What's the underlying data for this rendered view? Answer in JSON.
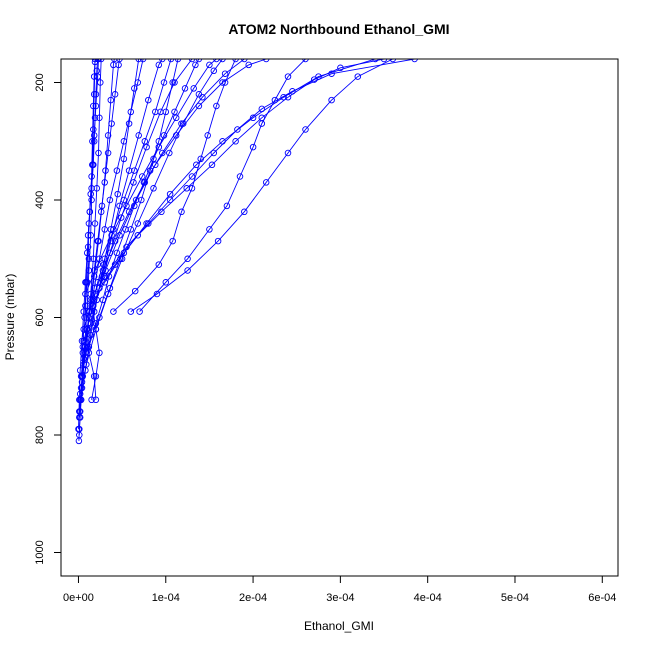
{
  "chart_data": {
    "type": "line",
    "title": "ATOM2 Northbound Ethanol_GMI",
    "xlabel": "Ethanol_GMI",
    "ylabel": "Pressure (mbar)",
    "xlim": [
      -2e-05,
      0.000618
    ],
    "ylim": [
      1040,
      160
    ],
    "y_reversed": true,
    "x_ticks": [
      0,
      0.0001,
      0.0002,
      0.0003,
      0.0004,
      0.0005,
      0.0006
    ],
    "x_tick_labels": [
      "0e+00",
      "1e-04",
      "2e-04",
      "3e-04",
      "4e-04",
      "5e-04",
      "6e-04"
    ],
    "y_ticks": [
      200,
      400,
      600,
      800,
      1000
    ],
    "y_tick_labels": [
      "200",
      "400",
      "600",
      "800",
      "1000"
    ],
    "marker": "open-circle",
    "line_color": "#0000ff",
    "grid": false,
    "series": [
      {
        "points": [
          [
            5e-07,
            810
          ],
          [
            1e-06,
            790
          ],
          [
            2e-06,
            770
          ],
          [
            3e-06,
            740
          ],
          [
            4e-06,
            700
          ],
          [
            5e-06,
            650
          ],
          [
            7e-06,
            600
          ],
          [
            9e-06,
            540
          ],
          [
            1.1e-05,
            480
          ],
          [
            1.3e-05,
            420
          ],
          [
            1.5e-05,
            360
          ],
          [
            1.6e-05,
            300
          ],
          [
            1.7e-05,
            240
          ],
          [
            1.8e-05,
            190
          ],
          [
            1.9e-05,
            160
          ]
        ]
      },
      {
        "points": [
          [
            1e-06,
            800
          ],
          [
            2e-06,
            760
          ],
          [
            4e-06,
            720
          ],
          [
            6e-06,
            680
          ],
          [
            8e-06,
            630
          ],
          [
            1e-05,
            580
          ],
          [
            1.2e-05,
            520
          ],
          [
            1.4e-05,
            460
          ],
          [
            1.5e-05,
            400
          ],
          [
            1.6e-05,
            340
          ],
          [
            1.7e-05,
            280
          ],
          [
            1.8e-05,
            220
          ],
          [
            1.9e-05,
            165
          ]
        ]
      },
      {
        "points": [
          [
            2e-06,
            740
          ],
          [
            5e-06,
            700
          ],
          [
            8e-06,
            660
          ],
          [
            1.1e-05,
            610
          ],
          [
            1.4e-05,
            560
          ],
          [
            1.7e-05,
            500
          ],
          [
            1.9e-05,
            440
          ],
          [
            2.1e-05,
            380
          ],
          [
            2.3e-05,
            320
          ],
          [
            2.4e-05,
            260
          ],
          [
            2.5e-05,
            200
          ],
          [
            2.6e-05,
            160
          ]
        ]
      },
      {
        "points": [
          [
            1e-06,
            760
          ],
          [
            4e-06,
            710
          ],
          [
            8e-06,
            650
          ],
          [
            1.3e-05,
            590
          ],
          [
            1.8e-05,
            530
          ],
          [
            2.3e-05,
            470
          ],
          [
            2.7e-05,
            410
          ],
          [
            3.1e-05,
            350
          ],
          [
            3.4e-05,
            290
          ],
          [
            3.7e-05,
            230
          ],
          [
            4e-05,
            170
          ],
          [
            4.1e-05,
            160
          ]
        ]
      },
      {
        "points": [
          [
            3e-06,
            740
          ],
          [
            8e-06,
            690
          ],
          [
            1.4e-05,
            630
          ],
          [
            2.1e-05,
            570
          ],
          [
            2.9e-05,
            510
          ],
          [
            3.7e-05,
            450
          ],
          [
            4.5e-05,
            390
          ],
          [
            5.2e-05,
            330
          ],
          [
            5.8e-05,
            270
          ],
          [
            6.4e-05,
            210
          ],
          [
            6.9e-05,
            160
          ]
        ]
      },
      {
        "points": [
          [
            4e-06,
            700
          ],
          [
            1e-05,
            650
          ],
          [
            1.8e-05,
            590
          ],
          [
            2.7e-05,
            530
          ],
          [
            3.7e-05,
            470
          ],
          [
            4.7e-05,
            410
          ],
          [
            5.8e-05,
            350
          ],
          [
            6.9e-05,
            290
          ],
          [
            8e-05,
            230
          ],
          [
            9.2e-05,
            170
          ],
          [
            9.6e-05,
            160
          ]
        ]
      },
      {
        "points": [
          [
            5e-06,
            660
          ],
          [
            1.4e-05,
            610
          ],
          [
            2.4e-05,
            550
          ],
          [
            3.6e-05,
            490
          ],
          [
            4.9e-05,
            430
          ],
          [
            6.3e-05,
            370
          ],
          [
            7.8e-05,
            310
          ],
          [
            9.4e-05,
            250
          ],
          [
            0.00011,
            200
          ],
          [
            0.00013,
            160
          ]
        ]
      },
      {
        "points": [
          [
            6e-06,
            640
          ],
          [
            1.7e-05,
            580
          ],
          [
            3.1e-05,
            520
          ],
          [
            4.7e-05,
            460
          ],
          [
            6.6e-05,
            400
          ],
          [
            8.8e-05,
            340
          ],
          [
            0.000112,
            290
          ],
          [
            0.000138,
            240
          ],
          [
            0.000165,
            200
          ],
          [
            0.000195,
            170
          ],
          [
            0.000215,
            160
          ]
        ]
      },
      {
        "points": [
          [
            1.2e-05,
            590
          ],
          [
            3e-05,
            540
          ],
          [
            5.2e-05,
            490
          ],
          [
            7.8e-05,
            440
          ],
          [
            0.000105,
            390
          ],
          [
            0.000135,
            340
          ],
          [
            0.000165,
            300
          ],
          [
            0.0002,
            260
          ],
          [
            0.000235,
            225
          ],
          [
            0.000275,
            190
          ],
          [
            0.00034,
            160
          ]
        ]
      },
      {
        "points": [
          [
            2e-05,
            560
          ],
          [
            4.2e-05,
            510
          ],
          [
            6.8e-05,
            460
          ],
          [
            9.5e-05,
            420
          ],
          [
            0.000124,
            380
          ],
          [
            0.000153,
            340
          ],
          [
            0.00018,
            300
          ],
          [
            0.00021,
            260
          ],
          [
            0.00024,
            225
          ],
          [
            0.00027,
            195
          ],
          [
            0.0003,
            175
          ],
          [
            0.00035,
            160
          ]
        ]
      },
      {
        "points": [
          [
            3e-05,
            530
          ],
          [
            5.5e-05,
            480
          ],
          [
            8e-05,
            440
          ],
          [
            0.000105,
            400
          ],
          [
            0.00013,
            360
          ],
          [
            0.000155,
            320
          ],
          [
            0.000182,
            280
          ],
          [
            0.00021,
            245
          ],
          [
            0.000245,
            215
          ],
          [
            0.00029,
            185
          ],
          [
            0.000385,
            160
          ]
        ]
      },
      {
        "points": [
          [
            8e-06,
            560
          ],
          [
            2.2e-05,
            510
          ],
          [
            3.8e-05,
            460
          ],
          [
            5.5e-05,
            410
          ],
          [
            7.3e-05,
            360
          ],
          [
            9.2e-05,
            310
          ],
          [
            0.000112,
            260
          ],
          [
            0.000132,
            210
          ],
          [
            0.00015,
            170
          ],
          [
            0.000158,
            160
          ]
        ]
      },
      {
        "points": [
          [
            2e-06,
            730
          ],
          [
            9e-06,
            680
          ],
          [
            2e-05,
            620
          ],
          [
            3.4e-05,
            560
          ],
          [
            5e-05,
            500
          ],
          [
            6.8e-05,
            440
          ],
          [
            8.6e-05,
            380
          ],
          [
            0.000104,
            320
          ],
          [
            0.00012,
            270
          ],
          [
            0.000138,
            220
          ],
          [
            0.000155,
            180
          ],
          [
            0.000165,
            160
          ]
        ]
      },
      {
        "points": [
          [
            1.5e-05,
            740
          ],
          [
            2e-05,
            700
          ],
          [
            2.4e-05,
            660
          ],
          [
            2e-05,
            620
          ],
          [
            1.6e-05,
            580
          ],
          [
            2.2e-05,
            540
          ],
          [
            3e-05,
            500
          ],
          [
            4e-05,
            450
          ],
          [
            5.2e-05,
            400
          ],
          [
            6.4e-05,
            350
          ],
          [
            7.6e-05,
            300
          ],
          [
            8.8e-05,
            250
          ],
          [
            9.8e-05,
            200
          ],
          [
            0.000106,
            160
          ]
        ]
      },
      {
        "points": [
          [
            6e-05,
            590
          ],
          [
            9e-05,
            560
          ],
          [
            0.000125,
            520
          ],
          [
            0.00016,
            470
          ],
          [
            0.00019,
            420
          ],
          [
            0.000215,
            370
          ],
          [
            0.00024,
            320
          ],
          [
            0.00026,
            280
          ],
          [
            0.00029,
            230
          ],
          [
            0.00032,
            190
          ],
          [
            0.00036,
            160
          ]
        ]
      },
      {
        "points": [
          [
            7e-05,
            590
          ],
          [
            0.0001,
            540
          ],
          [
            0.000125,
            500
          ],
          [
            0.00015,
            450
          ],
          [
            0.00017,
            410
          ],
          [
            0.000185,
            360
          ],
          [
            0.0002,
            310
          ],
          [
            0.00021,
            270
          ],
          [
            0.000225,
            230
          ],
          [
            0.00024,
            190
          ],
          [
            0.00026,
            160
          ]
        ]
      },
      {
        "points": [
          [
            4e-05,
            590
          ],
          [
            6.5e-05,
            555
          ],
          [
            9.2e-05,
            510
          ],
          [
            0.000108,
            470
          ],
          [
            0.000118,
            420
          ],
          [
            0.00013,
            380
          ],
          [
            0.00014,
            330
          ],
          [
            0.000148,
            290
          ],
          [
            0.000158,
            240
          ],
          [
            0.000168,
            200
          ],
          [
            0.00018,
            160
          ]
        ]
      },
      {
        "points": [
          [
            1e-05,
            650
          ],
          [
            2.4e-05,
            600
          ],
          [
            3.6e-05,
            550
          ],
          [
            4.8e-05,
            500
          ],
          [
            6e-05,
            450
          ],
          [
            7.2e-05,
            400
          ],
          [
            8.2e-05,
            350
          ],
          [
            9.2e-05,
            300
          ],
          [
            0.0001,
            250
          ],
          [
            0.000108,
            200
          ],
          [
            0.000114,
            160
          ]
        ]
      },
      {
        "points": [
          [
            1e-06,
            770
          ],
          [
            3e-06,
            720
          ],
          [
            6e-06,
            670
          ],
          [
            1e-05,
            620
          ],
          [
            1.4e-05,
            570
          ],
          [
            1.8e-05,
            520
          ],
          [
            2.2e-05,
            470
          ],
          [
            2.6e-05,
            420
          ],
          [
            3e-05,
            370
          ],
          [
            3.4e-05,
            320
          ],
          [
            3.8e-05,
            270
          ],
          [
            4.2e-05,
            220
          ],
          [
            4.6e-05,
            170
          ],
          [
            4.7e-05,
            160
          ]
        ]
      },
      {
        "points": [
          [
            3e-06,
            700
          ],
          [
            7e-06,
            650
          ],
          [
            1.2e-05,
            600
          ],
          [
            1.8e-05,
            550
          ],
          [
            2.4e-05,
            500
          ],
          [
            3e-05,
            450
          ],
          [
            3.6e-05,
            400
          ],
          [
            4.4e-05,
            350
          ],
          [
            5.2e-05,
            300
          ],
          [
            6e-05,
            250
          ],
          [
            6.8e-05,
            200
          ],
          [
            7.4e-05,
            160
          ]
        ]
      },
      {
        "points": [
          [
            6e-06,
            620
          ],
          [
            1.6e-05,
            570
          ],
          [
            2.8e-05,
            520
          ],
          [
            4.2e-05,
            470
          ],
          [
            5.8e-05,
            420
          ],
          [
            7.6e-05,
            370
          ],
          [
            9.6e-05,
            320
          ],
          [
            0.000118,
            270
          ],
          [
            0.000142,
            225
          ],
          [
            0.000168,
            185
          ],
          [
            0.00019,
            160
          ]
        ]
      },
      {
        "points": [
          [
            2e-05,
            740
          ],
          [
            1.8e-05,
            700
          ],
          [
            1.2e-05,
            660
          ],
          [
            9e-06,
            620
          ],
          [
            8e-06,
            580
          ],
          [
            1e-05,
            540
          ],
          [
            1.2e-05,
            500
          ],
          [
            1.1e-05,
            460
          ],
          [
            1.3e-05,
            420
          ],
          [
            1.5e-05,
            380
          ],
          [
            1.7e-05,
            340
          ],
          [
            1.8e-05,
            300
          ],
          [
            1.9e-05,
            260
          ],
          [
            2e-05,
            220
          ],
          [
            2.1e-05,
            180
          ],
          [
            2.2e-05,
            160
          ]
        ]
      },
      {
        "points": [
          [
            0.0,
            790
          ],
          [
            1e-06,
            740
          ],
          [
            2e-06,
            690
          ],
          [
            4e-06,
            640
          ],
          [
            6e-06,
            590
          ],
          [
            8e-06,
            540
          ],
          [
            1e-05,
            490
          ],
          [
            1.2e-05,
            440
          ],
          [
            1.4e-05,
            390
          ],
          [
            1.6e-05,
            340
          ],
          [
            1.8e-05,
            290
          ],
          [
            2e-05,
            240
          ],
          [
            2.2e-05,
            190
          ],
          [
            2.3e-05,
            160
          ]
        ]
      },
      {
        "points": [
          [
            1.2e-05,
            650
          ],
          [
            2e-05,
            610
          ],
          [
            2.8e-05,
            570
          ],
          [
            3.5e-05,
            530
          ],
          [
            4.4e-05,
            490
          ],
          [
            5.4e-05,
            450
          ],
          [
            6.4e-05,
            410
          ],
          [
            7.5e-05,
            370
          ],
          [
            8.6e-05,
            330
          ],
          [
            9.8e-05,
            290
          ],
          [
            0.00011,
            250
          ],
          [
            0.000122,
            210
          ],
          [
            0.000134,
            170
          ],
          [
            0.000138,
            160
          ]
        ]
      }
    ]
  }
}
